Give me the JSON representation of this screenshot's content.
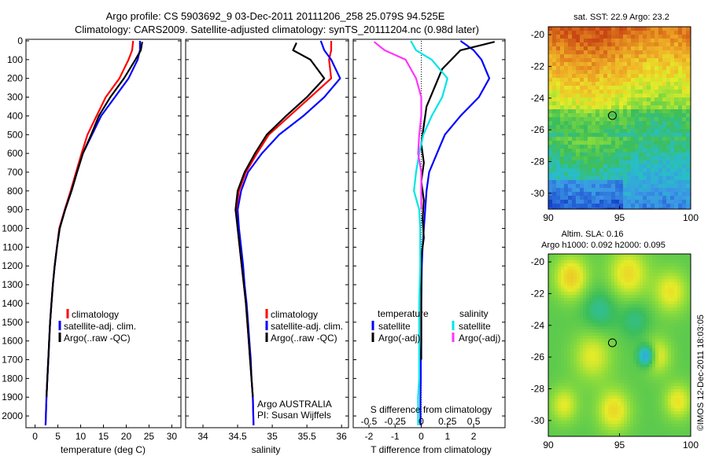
{
  "header": {
    "line1": "Argo profile: CS 5903692_9 03-Dec-2011 20111206_258 25.079S 94.525E",
    "line2": "Climatology: CARS2009. Satellite-adjusted climatology: synTS_20111204.nc (0.98d later)"
  },
  "credit": "©IMOS 12-Dec-2011 18:03:05",
  "colors": {
    "climatology": "#ff0000",
    "satellite": "#0000ff",
    "argo": "#000000",
    "satellite_s": "#00e5e5",
    "argo_s": "#ff33ff"
  },
  "chart_data": [
    {
      "type": "line",
      "panel": "temperature",
      "xlabel": "temperature (deg C)",
      "ylabel": "",
      "xlim": [
        -2,
        32
      ],
      "ylim": [
        2050,
        0
      ],
      "xticks": [
        "0",
        "5",
        "10",
        "15",
        "20",
        "25",
        "30"
      ],
      "yticks": [
        "0",
        "100",
        "200",
        "300",
        "400",
        "500",
        "600",
        "700",
        "800",
        "900",
        "1000",
        "1100",
        "1200",
        "1300",
        "1400",
        "1500",
        "1600",
        "1700",
        "1800",
        "1900",
        "2000"
      ],
      "legend": {
        "items": [
          "climatology",
          "satellite-adj. clim.",
          "Argo(..raw -QC)"
        ]
      },
      "series": [
        {
          "name": "climatology",
          "x": [
            21.5,
            21.3,
            20.5,
            18.5,
            15.5,
            13.5,
            11.5,
            10.2,
            9.0,
            7.8,
            6.5,
            5.3,
            4.8,
            4.3,
            3.9,
            3.6,
            3.3,
            3.1,
            2.9,
            2.7,
            2.5,
            2.3
          ],
          "y": [
            0,
            50,
            100,
            200,
            300,
            400,
            500,
            600,
            700,
            800,
            900,
            1000,
            1100,
            1200,
            1300,
            1400,
            1500,
            1600,
            1700,
            1800,
            1900,
            2050
          ]
        },
        {
          "name": "satellite-adj. clim.",
          "x": [
            23.0,
            23.0,
            22.5,
            20.5,
            17.5,
            14.5,
            12.5,
            10.5,
            9.2,
            8.0,
            6.6,
            5.4,
            4.8,
            4.3,
            3.9,
            3.6,
            3.3,
            3.1,
            2.9,
            2.7,
            2.5,
            2.3
          ],
          "y": [
            0,
            50,
            100,
            200,
            300,
            400,
            500,
            600,
            700,
            800,
            900,
            1000,
            1100,
            1200,
            1300,
            1400,
            1500,
            1600,
            1700,
            1800,
            1900,
            2050
          ]
        },
        {
          "name": "Argo(..raw -QC)",
          "x": [
            23.5,
            23.2,
            22.0,
            19.5,
            16.5,
            14.0,
            12.3,
            10.5,
            9.2,
            8.0,
            6.6,
            5.4,
            4.8,
            4.3,
            3.9,
            3.6,
            3.3,
            3.1,
            2.9,
            2.7,
            2.5
          ],
          "y": [
            5,
            50,
            100,
            200,
            300,
            400,
            500,
            600,
            700,
            800,
            900,
            1000,
            1100,
            1200,
            1300,
            1400,
            1500,
            1600,
            1700,
            1800,
            1900
          ]
        }
      ]
    },
    {
      "type": "line",
      "panel": "salinity",
      "xlabel": "salinity",
      "ylabel": "",
      "xlim": [
        33.75,
        36.1
      ],
      "ylim": [
        2050,
        0
      ],
      "xticks": [
        "34",
        "34.5",
        "35",
        "35.5",
        "36"
      ],
      "legend": {
        "items": [
          "climatology",
          "satellite-adj. clim.",
          "Argo(..raw -QC)"
        ]
      },
      "annotations": [
        "Argo AUSTRALIA",
        "PI: Susan Wijffels"
      ],
      "series": [
        {
          "name": "climatology",
          "x": [
            35.85,
            35.85,
            35.82,
            35.85,
            35.55,
            35.25,
            34.95,
            34.78,
            34.62,
            34.52,
            34.48,
            34.5,
            34.53,
            34.56,
            34.59,
            34.62,
            34.64,
            34.66,
            34.68,
            34.7,
            34.72,
            34.73
          ],
          "y": [
            0,
            50,
            100,
            200,
            300,
            400,
            500,
            600,
            700,
            800,
            900,
            1000,
            1100,
            1200,
            1300,
            1400,
            1500,
            1600,
            1700,
            1800,
            1900,
            2050
          ]
        },
        {
          "name": "satellite-adj. clim.",
          "x": [
            35.7,
            35.75,
            35.85,
            35.98,
            35.75,
            35.45,
            35.1,
            34.85,
            34.65,
            34.55,
            34.5,
            34.52,
            34.55,
            34.58,
            34.6,
            34.63,
            34.65,
            34.67,
            34.69,
            34.7,
            34.72,
            34.73
          ],
          "y": [
            0,
            50,
            100,
            200,
            300,
            400,
            500,
            600,
            700,
            800,
            900,
            1000,
            1100,
            1200,
            1300,
            1400,
            1500,
            1600,
            1700,
            1800,
            1900,
            2050
          ]
        },
        {
          "name": "Argo(..raw -QC)",
          "x": [
            35.35,
            35.3,
            35.55,
            35.75,
            35.5,
            35.2,
            34.92,
            34.75,
            34.6,
            34.5,
            34.47,
            34.5,
            34.53,
            34.56,
            34.59,
            34.62,
            34.64,
            34.66,
            34.68,
            34.7,
            34.72
          ],
          "y": [
            10,
            50,
            100,
            200,
            300,
            400,
            500,
            600,
            700,
            800,
            900,
            1000,
            1100,
            1200,
            1300,
            1400,
            1500,
            1600,
            1700,
            1800,
            1900
          ]
        }
      ]
    },
    {
      "type": "line",
      "panel": "difference",
      "xlabel": "T difference from climatology",
      "xlabel_top": "S difference from climatology",
      "xlim": [
        -2.6,
        3.2
      ],
      "ylim": [
        2050,
        0
      ],
      "xticks": [
        "-2",
        "-1",
        "0",
        "1",
        "2"
      ],
      "xticks_top": [
        "-0.5",
        "-0.25",
        "0",
        "0.25",
        "0.5"
      ],
      "legend": {
        "temperature_title": "temperature",
        "salinity_title": "salinity",
        "items": [
          "satellite",
          "Argo(-adj)",
          "satellite",
          "Argo(-adj)"
        ]
      },
      "series": [
        {
          "name": "temperature satellite",
          "x": [
            1.5,
            2.0,
            2.3,
            2.6,
            2.2,
            1.5,
            0.9,
            0.6,
            0.3,
            0.2,
            0.15,
            0.1,
            0.05,
            0.02,
            0.0,
            0.0,
            -0.02,
            -0.02,
            -0.03,
            -0.03
          ],
          "y": [
            0,
            50,
            100,
            200,
            300,
            400,
            500,
            600,
            700,
            800,
            900,
            1000,
            1100,
            1200,
            1400,
            1600,
            1700,
            1800,
            1900,
            2050
          ]
        },
        {
          "name": "temperature Argo(-adj)",
          "x": [
            2.8,
            1.5,
            0.8,
            0.5,
            0.2,
            0.1,
            0.0,
            0.1,
            0.0,
            0.1,
            0.05,
            0.1,
            0.0,
            0.0,
            0.0,
            0.0
          ],
          "y": [
            5,
            50,
            150,
            250,
            350,
            450,
            550,
            650,
            750,
            850,
            950,
            1050,
            1150,
            1300,
            1500,
            1700
          ]
        },
        {
          "name": "salinity satellite",
          "x": [
            -0.1,
            -0.05,
            0.1,
            0.25,
            0.2,
            0.1,
            0.02,
            -0.02,
            -0.05,
            -0.07,
            -0.02,
            -0.01,
            -0.01,
            -0.02,
            -0.02,
            -0.02,
            -0.03,
            -0.03
          ],
          "y": [
            0,
            50,
            100,
            200,
            300,
            400,
            500,
            600,
            700,
            800,
            900,
            1000,
            1200,
            1400,
            1600,
            1800,
            1900,
            2050
          ]
        },
        {
          "name": "salinity Argo(-adj)",
          "x": [
            -0.45,
            -0.35,
            -0.15,
            -0.05,
            0.0,
            0.0,
            -0.02,
            -0.03,
            0.0,
            0.0,
            0.0
          ],
          "y": [
            5,
            50,
            100,
            200,
            300,
            400,
            500,
            600,
            700,
            800,
            900
          ]
        }
      ]
    },
    {
      "type": "heatmap",
      "panel": "sst-map",
      "title": "sat. SST: 22.9 Argo: 23.2",
      "xlim": [
        90,
        100
      ],
      "ylim": [
        -31,
        -19.5
      ],
      "xticks": [
        "90",
        "95",
        "100"
      ],
      "yticks": [
        "-20",
        "-22",
        "-24",
        "-26",
        "-28",
        "-30"
      ],
      "marker": {
        "lon": 94.5,
        "lat": -25.1
      }
    },
    {
      "type": "heatmap",
      "panel": "sla-map",
      "title_line1": "Altim. SLA: 0.16",
      "title_line2": "Argo h1000: 0.092 h2000: 0.095",
      "xlim": [
        90,
        100
      ],
      "ylim": [
        -31,
        -19.5
      ],
      "xticks": [
        "90",
        "95",
        "100"
      ],
      "yticks": [
        "-20",
        "-22",
        "-24",
        "-26",
        "-28",
        "-30"
      ],
      "marker": {
        "lon": 94.5,
        "lat": -25.1
      }
    }
  ]
}
